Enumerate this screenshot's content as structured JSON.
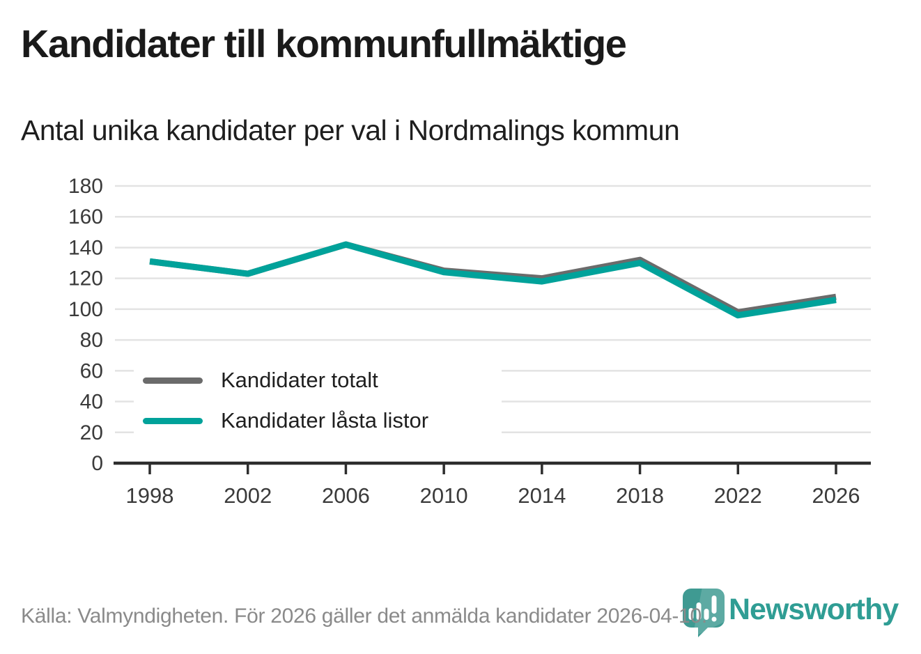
{
  "chart_data": {
    "type": "line",
    "title": "Kandidater till kommunfullmäktige",
    "subtitle": "Antal unika kandidater per val i Nordmalings kommun",
    "x": [
      1998,
      2002,
      2006,
      2010,
      2014,
      2018,
      2022,
      2026
    ],
    "series": [
      {
        "name": "Kandidater totalt",
        "color": "#6b6b6b",
        "values": [
          131,
          123,
          142,
          125,
          120,
          132,
          98,
          108
        ]
      },
      {
        "name": "Kandidater låsta listor",
        "color": "#00a29a",
        "values": [
          131,
          123,
          142,
          124,
          118,
          130,
          96,
          106
        ]
      }
    ],
    "ylim": [
      0,
      180
    ],
    "ytick_step": 20,
    "xlabel": "",
    "ylabel": "",
    "grid": true,
    "legend_position": "inside-bottom-left"
  },
  "footer": {
    "source": "Källa: Valmyndigheten. För 2026 gäller det anmälda kandidater 2026-04-10."
  },
  "logo": {
    "text": "Newsworthy",
    "icon": "newsworthy-pin-icon"
  },
  "colors": {
    "background": "#ffffff",
    "gridline": "#e3e3e3",
    "axis": "#2d2d2d",
    "tick_label": "#3a3a3a",
    "title": "#1a1a1a",
    "subtitle": "#1e1e1e",
    "legend_label": "#1f1f1f",
    "source_text": "#8a8a8a",
    "logo_pin": "#3f9a92",
    "logo_wordmark": "#2f9d94"
  }
}
